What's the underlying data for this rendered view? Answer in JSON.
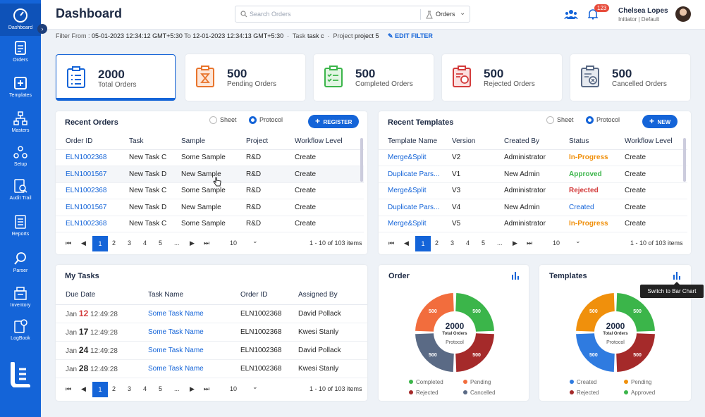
{
  "sidebar": {
    "items": [
      {
        "label": "Dashboard"
      },
      {
        "label": "Orders"
      },
      {
        "label": "Templates"
      },
      {
        "label": "Masters"
      },
      {
        "label": "Setup"
      },
      {
        "label": "Audit Trail"
      },
      {
        "label": "Reports"
      },
      {
        "label": "Parser"
      },
      {
        "label": "Inventory"
      },
      {
        "label": "LogBook"
      }
    ]
  },
  "header": {
    "title": "Dashboard",
    "search_placeholder": "Search Orders",
    "search_scope": "Orders",
    "notification_count": "123",
    "user_name": "Chelsea Lopes",
    "user_role": "Initiator | Default"
  },
  "filter": {
    "prefix": "Filter From :",
    "from": "05-01-2023 12:34:12 GMT+5:30",
    "to_label": "To",
    "to": "12-01-2023 12:34:13 GMT+5:30",
    "task_label": "Task",
    "task": "task c",
    "project_label": "Project",
    "project": "project 5",
    "edit_label": "EDIT FILTER"
  },
  "stats": [
    {
      "value": "2000",
      "label": "Total Orders",
      "color": "#1464d8"
    },
    {
      "value": "500",
      "label": "Pending Orders",
      "color": "#e8742c"
    },
    {
      "value": "500",
      "label": "Completed Orders",
      "color": "#3bb54a"
    },
    {
      "value": "500",
      "label": "Rejected Orders",
      "color": "#d33b3b"
    },
    {
      "value": "500",
      "label": "Cancelled Orders",
      "color": "#5a6a85"
    }
  ],
  "recent_orders": {
    "title": "Recent Orders",
    "radio_sheet": "Sheet",
    "radio_protocol": "Protocol",
    "button": "REGISTER",
    "columns": [
      "Order ID",
      "Task",
      "Sample",
      "Project",
      "Workflow Level"
    ],
    "rows": [
      [
        "ELN1002368",
        "New Task C",
        "Some Sample",
        "R&D",
        "Create"
      ],
      [
        "ELN1001567",
        "New Task D",
        "New Sample",
        "R&D",
        "Create"
      ],
      [
        "ELN1002368",
        "New Task C",
        "Some Sample",
        "R&D",
        "Create"
      ],
      [
        "ELN1001567",
        "New Task D",
        "New Sample",
        "R&D",
        "Create"
      ],
      [
        "ELN1002368",
        "New Task C",
        "Some Sample",
        "R&D",
        "Create"
      ]
    ],
    "pages": [
      "1",
      "2",
      "3",
      "4",
      "5",
      "..."
    ],
    "page_size": "10",
    "info": "1 - 10 of 103 items"
  },
  "recent_templates": {
    "title": "Recent Templates",
    "radio_sheet": "Sheet",
    "radio_protocol": "Protocol",
    "button": "NEW",
    "columns": [
      "Template Name",
      "Version",
      "Created By",
      "Status",
      "Workflow Level"
    ],
    "rows": [
      [
        "Merge&Split",
        "V2",
        "Administrator",
        "In-Progress",
        "Create"
      ],
      [
        "Duplicate Pars...",
        "V1",
        "New Admin",
        "Approved",
        "Create"
      ],
      [
        "Merge&Split",
        "V3",
        "Administrator",
        "Rejected",
        "Create"
      ],
      [
        "Duplicate Pars...",
        "V4",
        "New Admin",
        "Created",
        "Create"
      ],
      [
        "Merge&Split",
        "V5",
        "Administrator",
        "In-Progress",
        "Create"
      ]
    ],
    "pages": [
      "1",
      "2",
      "3",
      "4",
      "5",
      "..."
    ],
    "page_size": "10",
    "info": "1 - 10 of 103 items"
  },
  "my_tasks": {
    "title": "My Tasks",
    "columns": [
      "Due Date",
      "Task Name",
      "Order ID",
      "Assigned By"
    ],
    "rows": [
      {
        "month": "Jan",
        "day": "12",
        "time": "12:49:28",
        "task": "Some Task Name",
        "order": "ELN1002368",
        "by": "David Pollack"
      },
      {
        "month": "Jan",
        "day": "17",
        "time": "12:49:28",
        "task": "Some Task Name",
        "order": "ELN1002368",
        "by": "Kwesi Stanly"
      },
      {
        "month": "Jan",
        "day": "24",
        "time": "12:49:28",
        "task": "Some Task Name",
        "order": "ELN1002368",
        "by": "David Pollack"
      },
      {
        "month": "Jan",
        "day": "28",
        "time": "12:49:28",
        "task": "Some Task Name",
        "order": "ELN1002368",
        "by": "Kwesi Stanly"
      }
    ],
    "pages": [
      "1",
      "2",
      "3",
      "4",
      "5",
      "..."
    ],
    "page_size": "10",
    "info": "1 - 10 of 103 items"
  },
  "order_chart": {
    "title": "Order",
    "center_value": "2000",
    "center_label": "Total Orders",
    "center_sub": "Protocol",
    "slices": [
      {
        "label": "Completed",
        "value": 500,
        "color": "#3bb54a"
      },
      {
        "label": "Rejected",
        "value": 500,
        "color": "#a52a2a"
      },
      {
        "label": "Cancelled",
        "value": 500,
        "color": "#5a6a85"
      },
      {
        "label": "Pending",
        "value": 500,
        "color": "#f26d3d"
      }
    ]
  },
  "templates_chart": {
    "title": "Templates",
    "center_value": "2000",
    "center_label": "Total Orders",
    "center_sub": "Protocol",
    "tooltip": "Switch to Bar Chart",
    "slices": [
      {
        "label": "Approved",
        "value": 500,
        "color": "#3bb54a"
      },
      {
        "label": "Rejected",
        "value": 500,
        "color": "#a52a2a"
      },
      {
        "label": "Created",
        "value": 500,
        "color": "#2f7be0"
      },
      {
        "label": "Pending",
        "value": 500,
        "color": "#f0900c"
      }
    ]
  },
  "status_colors": {
    "In-Progress": "#f0900c",
    "Approved": "#3bb54a",
    "Rejected": "#d33b3b",
    "Created": "#1464d8"
  }
}
